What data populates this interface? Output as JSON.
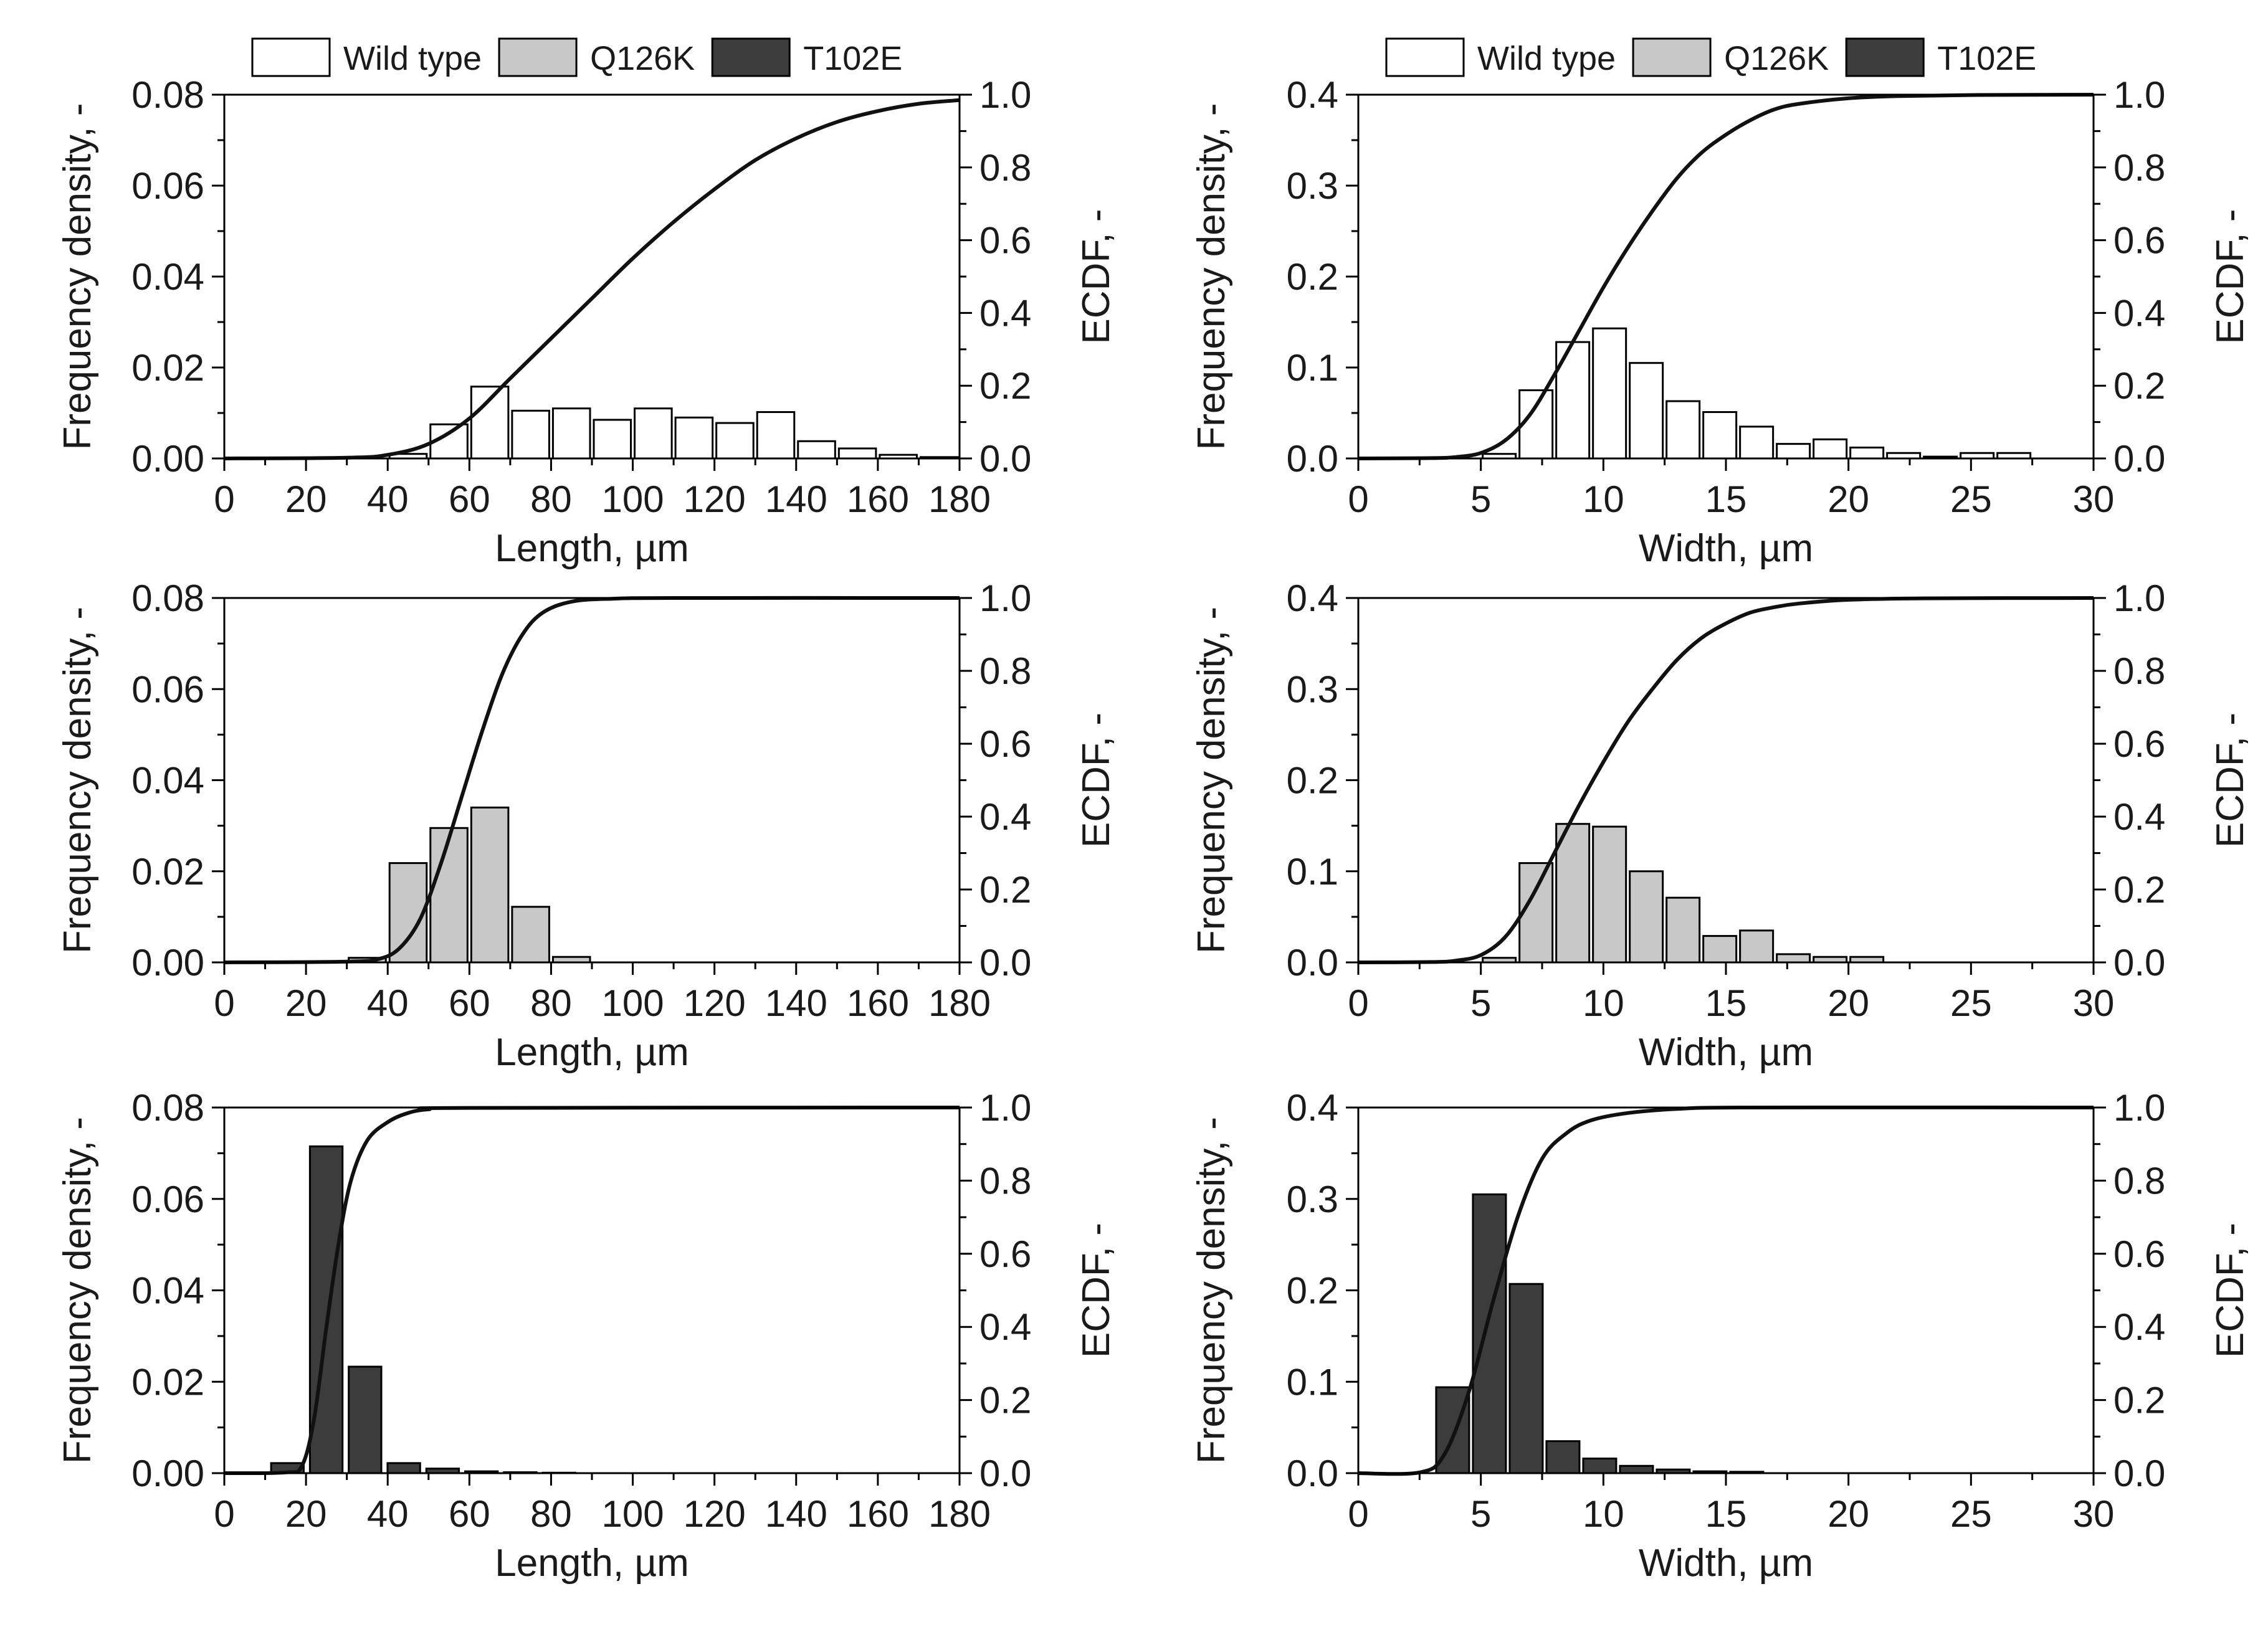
{
  "figure": {
    "legend_left": [
      "Wild type",
      "Q126K",
      "T102E"
    ],
    "legend_right": [
      "Wild type",
      "Q126K",
      "T102E"
    ]
  },
  "colors": {
    "Wild type": "#ffffff",
    "Q126K": "#c8c8c8",
    "T102E": "#3c3c3c",
    "line": "#111111"
  },
  "chart_data": [
    {
      "type": "bar",
      "id": "length-wild-type",
      "series": "Wild type",
      "position": "top-left",
      "xlabel": "Length, µm",
      "ylabel": "Frequency density, -",
      "y2label": "ECDF, -",
      "xlim": [
        0,
        180
      ],
      "ylim": [
        0,
        0.08
      ],
      "y2lim": [
        0,
        1.0
      ],
      "xticks": [
        "0",
        "20",
        "40",
        "60",
        "80",
        "100",
        "120",
        "140",
        "160",
        "180"
      ],
      "yticks": [
        "0.00",
        "0.02",
        "0.04",
        "0.06",
        "0.08"
      ],
      "y2ticks": [
        "0.0",
        "0.2",
        "0.4",
        "0.6",
        "0.8",
        "1.0"
      ],
      "bin_width": 10,
      "bins": [
        [
          40,
          0.001
        ],
        [
          50,
          0.0075
        ],
        [
          60,
          0.0158
        ],
        [
          70,
          0.0105
        ],
        [
          80,
          0.011
        ],
        [
          90,
          0.0085
        ],
        [
          100,
          0.011
        ],
        [
          110,
          0.009
        ],
        [
          120,
          0.0078
        ],
        [
          130,
          0.0102
        ],
        [
          140,
          0.0038
        ],
        [
          150,
          0.0022
        ],
        [
          160,
          0.0008
        ],
        [
          170,
          0.0003
        ]
      ],
      "ecdf": [
        [
          0,
          0
        ],
        [
          30,
          0.002
        ],
        [
          40,
          0.01
        ],
        [
          50,
          0.04
        ],
        [
          60,
          0.11
        ],
        [
          70,
          0.22
        ],
        [
          80,
          0.33
        ],
        [
          90,
          0.44
        ],
        [
          100,
          0.55
        ],
        [
          110,
          0.65
        ],
        [
          120,
          0.74
        ],
        [
          130,
          0.82
        ],
        [
          140,
          0.88
        ],
        [
          150,
          0.925
        ],
        [
          160,
          0.955
        ],
        [
          170,
          0.975
        ],
        [
          180,
          0.985
        ]
      ]
    },
    {
      "type": "bar",
      "id": "width-wild-type",
      "series": "Wild type",
      "position": "top-right",
      "xlabel": "Width, µm",
      "ylabel": "Frequency density, -",
      "y2label": "ECDF, -",
      "xlim": [
        0,
        30
      ],
      "ylim": [
        0,
        0.4
      ],
      "y2lim": [
        0,
        1.0
      ],
      "xticks": [
        "0",
        "5",
        "10",
        "15",
        "20",
        "25",
        "30"
      ],
      "yticks": [
        "0.0",
        "0.1",
        "0.2",
        "0.3",
        "0.4"
      ],
      "y2ticks": [
        "0.0",
        "0.2",
        "0.4",
        "0.6",
        "0.8",
        "1.0"
      ],
      "bin_width": 1.5,
      "bins": [
        [
          5,
          0.005
        ],
        [
          6.5,
          0.075
        ],
        [
          8,
          0.128
        ],
        [
          9.5,
          0.143
        ],
        [
          11,
          0.105
        ],
        [
          12.5,
          0.063
        ],
        [
          14,
          0.051
        ],
        [
          15.5,
          0.035
        ],
        [
          17,
          0.016
        ],
        [
          18.5,
          0.021
        ],
        [
          20,
          0.012
        ],
        [
          21.5,
          0.006
        ],
        [
          23,
          0.002
        ],
        [
          24.5,
          0.006
        ],
        [
          26,
          0.006
        ]
      ],
      "ecdf": [
        [
          0,
          0
        ],
        [
          3,
          0.001
        ],
        [
          4,
          0.004
        ],
        [
          5,
          0.015
        ],
        [
          6,
          0.05
        ],
        [
          7,
          0.12
        ],
        [
          8,
          0.23
        ],
        [
          9,
          0.35
        ],
        [
          10,
          0.47
        ],
        [
          11,
          0.58
        ],
        [
          12,
          0.68
        ],
        [
          13,
          0.77
        ],
        [
          14,
          0.84
        ],
        [
          15,
          0.89
        ],
        [
          16,
          0.93
        ],
        [
          17,
          0.96
        ],
        [
          18,
          0.975
        ],
        [
          20,
          0.99
        ],
        [
          22,
          0.996
        ],
        [
          25,
          0.999
        ],
        [
          30,
          1.0
        ]
      ]
    },
    {
      "type": "bar",
      "id": "length-q126k",
      "series": "Q126K",
      "position": "middle-left",
      "xlabel": "Length, µm",
      "ylabel": "Frequency density, -",
      "y2label": "ECDF, -",
      "xlim": [
        0,
        180
      ],
      "ylim": [
        0,
        0.08
      ],
      "y2lim": [
        0,
        1.0
      ],
      "xticks": [
        "0",
        "20",
        "40",
        "60",
        "80",
        "100",
        "120",
        "140",
        "160",
        "180"
      ],
      "yticks": [
        "0.00",
        "0.02",
        "0.04",
        "0.06",
        "0.08"
      ],
      "y2ticks": [
        "0.0",
        "0.2",
        "0.4",
        "0.6",
        "0.8",
        "1.0"
      ],
      "bin_width": 10,
      "bins": [
        [
          30,
          0.001
        ],
        [
          40,
          0.0218
        ],
        [
          50,
          0.0295
        ],
        [
          60,
          0.034
        ],
        [
          70,
          0.0122
        ],
        [
          80,
          0.0012
        ]
      ],
      "ecdf": [
        [
          0,
          0
        ],
        [
          30,
          0.002
        ],
        [
          38,
          0.01
        ],
        [
          43,
          0.04
        ],
        [
          48,
          0.12
        ],
        [
          53,
          0.27
        ],
        [
          58,
          0.45
        ],
        [
          63,
          0.63
        ],
        [
          68,
          0.79
        ],
        [
          73,
          0.9
        ],
        [
          78,
          0.96
        ],
        [
          85,
          0.99
        ],
        [
          95,
          0.998
        ],
        [
          110,
          1.0
        ],
        [
          180,
          1.0
        ]
      ]
    },
    {
      "type": "bar",
      "id": "width-q126k",
      "series": "Q126K",
      "position": "middle-right",
      "xlabel": "Width, µm",
      "ylabel": "Frequency density, -",
      "y2label": "ECDF, -",
      "xlim": [
        0,
        30
      ],
      "ylim": [
        0,
        0.4
      ],
      "y2lim": [
        0,
        1.0
      ],
      "xticks": [
        "0",
        "5",
        "10",
        "15",
        "20",
        "25",
        "30"
      ],
      "yticks": [
        "0.0",
        "0.1",
        "0.2",
        "0.3",
        "0.4"
      ],
      "y2ticks": [
        "0.0",
        "0.2",
        "0.4",
        "0.6",
        "0.8",
        "1.0"
      ],
      "bin_width": 1.5,
      "bins": [
        [
          5,
          0.005
        ],
        [
          6.5,
          0.109
        ],
        [
          8,
          0.152
        ],
        [
          9.5,
          0.149
        ],
        [
          11,
          0.1
        ],
        [
          12.5,
          0.071
        ],
        [
          14,
          0.029
        ],
        [
          15.5,
          0.035
        ],
        [
          17,
          0.009
        ],
        [
          18.5,
          0.006
        ],
        [
          20,
          0.006
        ]
      ],
      "ecdf": [
        [
          0,
          0
        ],
        [
          3,
          0.001
        ],
        [
          4,
          0.005
        ],
        [
          5,
          0.02
        ],
        [
          6,
          0.07
        ],
        [
          7,
          0.17
        ],
        [
          8,
          0.3
        ],
        [
          9,
          0.43
        ],
        [
          10,
          0.55
        ],
        [
          11,
          0.66
        ],
        [
          12,
          0.75
        ],
        [
          13,
          0.83
        ],
        [
          14,
          0.89
        ],
        [
          15,
          0.93
        ],
        [
          16,
          0.96
        ],
        [
          17,
          0.975
        ],
        [
          18,
          0.985
        ],
        [
          20,
          0.995
        ],
        [
          23,
          0.999
        ],
        [
          30,
          1.0
        ]
      ]
    },
    {
      "type": "bar",
      "id": "length-t102e",
      "series": "T102E",
      "position": "bottom-left",
      "xlabel": "Length, µm",
      "ylabel": "Frequency density, -",
      "y2label": "ECDF, -",
      "xlim": [
        0,
        180
      ],
      "ylim": [
        0,
        0.08
      ],
      "y2lim": [
        0,
        1.0
      ],
      "xticks": [
        "0",
        "20",
        "40",
        "60",
        "80",
        "100",
        "120",
        "140",
        "160",
        "180"
      ],
      "yticks": [
        "0.00",
        "0.02",
        "0.04",
        "0.06",
        "0.08"
      ],
      "y2ticks": [
        "0.0",
        "0.2",
        "0.4",
        "0.6",
        "0.8",
        "1.0"
      ],
      "bin_width": 8.9,
      "bins": [
        [
          11,
          0.0022
        ],
        [
          20.5,
          0.0715
        ],
        [
          30,
          0.0233
        ],
        [
          39.5,
          0.0022
        ],
        [
          49,
          0.001
        ],
        [
          58.5,
          0.0004
        ],
        [
          68,
          0.0002
        ],
        [
          77.5,
          0.0001
        ]
      ],
      "ecdf": [
        [
          0,
          0
        ],
        [
          15,
          0.002
        ],
        [
          19,
          0.02
        ],
        [
          22,
          0.15
        ],
        [
          25,
          0.4
        ],
        [
          28,
          0.63
        ],
        [
          31,
          0.8
        ],
        [
          35,
          0.91
        ],
        [
          40,
          0.96
        ],
        [
          45,
          0.985
        ],
        [
          50,
          0.995
        ],
        [
          60,
          0.999
        ],
        [
          180,
          1.0
        ]
      ]
    },
    {
      "type": "bar",
      "id": "width-t102e",
      "series": "T102E",
      "position": "bottom-right",
      "xlabel": "Width, µm",
      "ylabel": "Frequency density, -",
      "y2label": "ECDF, -",
      "xlim": [
        0,
        30
      ],
      "ylim": [
        0,
        0.4
      ],
      "y2lim": [
        0,
        1.0
      ],
      "xticks": [
        "0",
        "5",
        "10",
        "15",
        "20",
        "25",
        "30"
      ],
      "yticks": [
        "0.0",
        "0.1",
        "0.2",
        "0.3",
        "0.4"
      ],
      "y2ticks": [
        "0.0",
        "0.2",
        "0.4",
        "0.6",
        "0.8",
        "1.0"
      ],
      "bin_width": 1.5,
      "bins": [
        [
          3.1,
          0.094
        ],
        [
          4.6,
          0.305
        ],
        [
          6.1,
          0.207
        ],
        [
          7.6,
          0.035
        ],
        [
          9.1,
          0.016
        ],
        [
          10.6,
          0.008
        ],
        [
          12.1,
          0.004
        ],
        [
          13.6,
          0.002
        ],
        [
          15.1,
          0.0015
        ]
      ],
      "ecdf": [
        [
          0,
          0
        ],
        [
          2.5,
          0.002
        ],
        [
          3.5,
          0.05
        ],
        [
          4.5,
          0.22
        ],
        [
          5.5,
          0.47
        ],
        [
          6.5,
          0.7
        ],
        [
          7.5,
          0.86
        ],
        [
          8.5,
          0.93
        ],
        [
          9.5,
          0.965
        ],
        [
          11,
          0.985
        ],
        [
          13,
          0.996
        ],
        [
          16,
          1.0
        ],
        [
          30,
          1.0
        ]
      ]
    }
  ]
}
